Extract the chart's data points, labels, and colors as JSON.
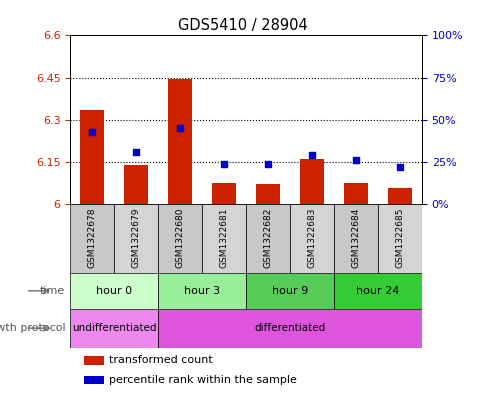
{
  "title": "GDS5410 / 28904",
  "samples": [
    "GSM1322678",
    "GSM1322679",
    "GSM1322680",
    "GSM1322681",
    "GSM1322682",
    "GSM1322683",
    "GSM1322684",
    "GSM1322685"
  ],
  "transformed_counts": [
    6.335,
    6.14,
    6.445,
    6.075,
    6.072,
    6.16,
    6.075,
    6.057
  ],
  "percentile_ranks": [
    43,
    31,
    45,
    24,
    24,
    29,
    26,
    22
  ],
  "ylim_left": [
    6.0,
    6.6
  ],
  "ylim_right": [
    0,
    100
  ],
  "yticks_left": [
    6.0,
    6.15,
    6.3,
    6.45,
    6.6
  ],
  "ytick_labels_left": [
    "6",
    "6.15",
    "6.3",
    "6.45",
    "6.6"
  ],
  "yticks_right": [
    0,
    25,
    50,
    75,
    100
  ],
  "ytick_labels_right": [
    "0%",
    "25%",
    "50%",
    "75%",
    "100%"
  ],
  "hlines": [
    6.15,
    6.3,
    6.45
  ],
  "bar_color": "#cc2200",
  "dot_color": "#0000cc",
  "bar_width": 0.55,
  "time_groups": [
    {
      "label": "hour 0",
      "start": 0,
      "end": 2,
      "color": "#ccffcc"
    },
    {
      "label": "hour 3",
      "start": 2,
      "end": 4,
      "color": "#99ee99"
    },
    {
      "label": "hour 9",
      "start": 4,
      "end": 6,
      "color": "#55cc55"
    },
    {
      "label": "hour 24",
      "start": 6,
      "end": 8,
      "color": "#33cc33"
    }
  ],
  "growth_protocol_groups": [
    {
      "label": "undifferentiated",
      "start": 0,
      "end": 2,
      "color": "#ee88ee"
    },
    {
      "label": "differentiated",
      "start": 2,
      "end": 8,
      "color": "#dd55dd"
    }
  ],
  "time_label": "time",
  "growth_label": "growth protocol",
  "legend_items": [
    {
      "color": "#cc2200",
      "label": "transformed count"
    },
    {
      "color": "#0000cc",
      "label": "percentile rank within the sample"
    }
  ],
  "bg_color": "#ffffff",
  "plot_bg": "#ffffff",
  "sample_box_colors": [
    "#c8c8c8",
    "#d4d4d4",
    "#c8c8c8",
    "#d4d4d4",
    "#c8c8c8",
    "#d4d4d4",
    "#c8c8c8",
    "#d4d4d4"
  ]
}
